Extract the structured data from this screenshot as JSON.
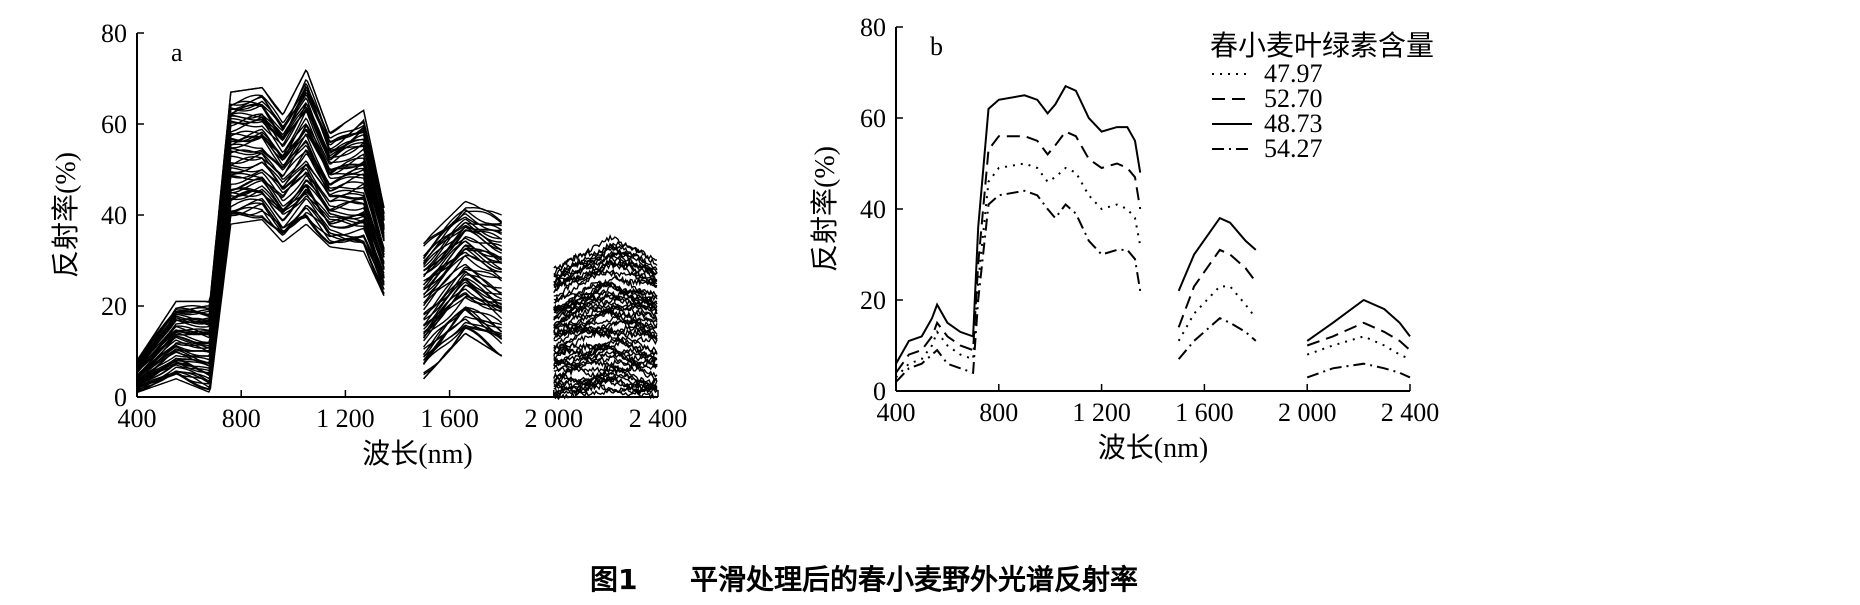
{
  "caption": {
    "number": "图1",
    "text": "平滑处理后的春小麦野外光谱反射率"
  },
  "chart_data": [
    {
      "panel": "a",
      "type": "line",
      "xlabel": "波长(nm)",
      "ylabel": "反射率(%)",
      "xlim": [
        400,
        2400
      ],
      "ylim": [
        0,
        80
      ],
      "xticks": [
        400,
        800,
        1200,
        1600,
        2000,
        2400
      ],
      "xtick_labels": [
        "400",
        "800",
        "1 200",
        "1 600",
        "2 000",
        "2 400"
      ],
      "yticks": [
        0,
        20,
        40,
        60,
        80
      ],
      "ytick_labels": [
        "0",
        "20",
        "40",
        "60",
        "80"
      ],
      "segments": [
        [
          400,
          1350
        ],
        [
          1500,
          1800
        ],
        [
          2000,
          2400
        ]
      ],
      "series_count": 60,
      "envelope": {
        "x": [
          400,
          550,
          680,
          760,
          880,
          960,
          1050,
          1140,
          1270,
          1350,
          1500,
          1660,
          1800,
          2000,
          2220,
          2400
        ],
        "low": [
          1,
          4,
          1,
          38,
          39,
          34,
          38,
          33,
          32,
          22,
          4,
          14,
          9,
          0,
          1,
          0
        ],
        "high": [
          8,
          21,
          21,
          67,
          68,
          62,
          72,
          58,
          63,
          41,
          34,
          43,
          40,
          28,
          35,
          30
        ]
      }
    },
    {
      "panel": "b",
      "type": "line",
      "xlabel": "波长(nm)",
      "ylabel": "反射率(%)",
      "xlim": [
        400,
        2400
      ],
      "ylim": [
        0,
        80
      ],
      "xticks": [
        400,
        800,
        1200,
        1600,
        2000,
        2400
      ],
      "xtick_labels": [
        "400",
        "800",
        "1 200",
        "1 600",
        "2 000",
        "2 400"
      ],
      "yticks": [
        0,
        20,
        40,
        60,
        80
      ],
      "ytick_labels": [
        "0",
        "20",
        "40",
        "60",
        "80"
      ],
      "legend": {
        "title": "春小麦叶绿素含量",
        "position": "top-right"
      },
      "x": [
        400,
        450,
        500,
        540,
        560,
        600,
        650,
        700,
        720,
        760,
        800,
        900,
        950,
        990,
        1020,
        1060,
        1100,
        1150,
        1200,
        1260,
        1300,
        1330,
        1350,
        1500,
        1560,
        1660,
        1700,
        1760,
        1800,
        2000,
        2100,
        2220,
        2300,
        2360,
        2400
      ],
      "segments": [
        [
          400,
          1350
        ],
        [
          1500,
          1800
        ],
        [
          2000,
          2400
        ]
      ],
      "series": [
        {
          "name": "47.97",
          "dash": "dotted",
          "values": [
            3,
            6,
            7,
            10,
            13,
            10,
            8,
            7,
            24,
            46,
            49,
            50,
            49,
            46,
            47,
            49,
            48,
            43,
            40,
            41,
            40,
            38,
            32,
            11,
            17,
            23,
            23,
            19,
            16,
            8,
            10,
            12,
            10,
            8,
            7
          ]
        },
        {
          "name": "52.70",
          "dash": "dashed",
          "values": [
            4,
            8,
            9,
            12,
            15,
            12,
            10,
            9,
            28,
            53,
            56,
            56,
            55,
            52,
            54,
            57,
            56,
            51,
            49,
            50,
            49,
            47,
            40,
            14,
            23,
            31,
            30,
            27,
            24,
            10,
            12,
            15,
            13,
            11,
            9
          ]
        },
        {
          "name": "48.73",
          "dash": "solid",
          "values": [
            6,
            11,
            12,
            16,
            19,
            15,
            13,
            12,
            36,
            62,
            64,
            65,
            64,
            61,
            63,
            67,
            66,
            60,
            57,
            58,
            58,
            55,
            48,
            22,
            30,
            38,
            37,
            33,
            31,
            11,
            15,
            20,
            18,
            15,
            12
          ]
        },
        {
          "name": "54.27",
          "dash": "dashdot",
          "values": [
            2,
            5,
            6,
            8,
            9,
            6,
            5,
            4,
            20,
            41,
            43,
            44,
            43,
            40,
            38,
            41,
            39,
            33,
            30,
            31,
            31,
            29,
            22,
            7,
            11,
            16,
            15,
            13,
            11,
            3,
            5,
            6,
            5,
            4,
            3
          ]
        }
      ]
    }
  ]
}
